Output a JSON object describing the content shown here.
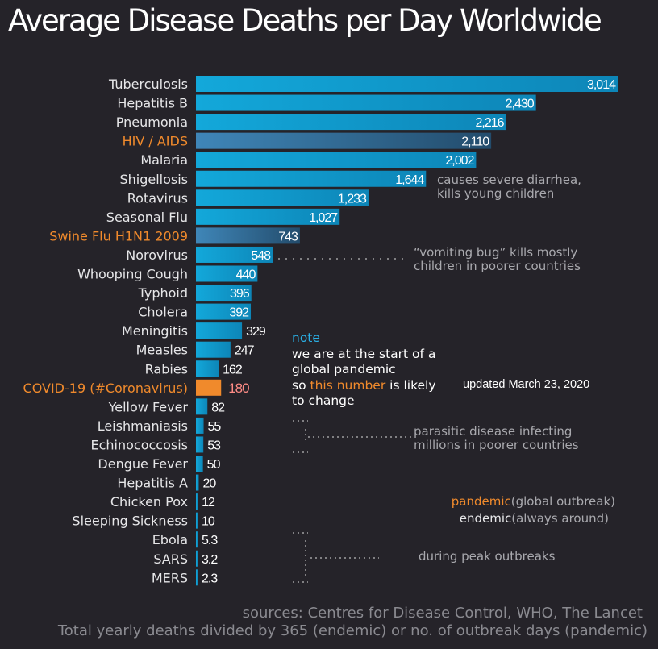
{
  "chart_data": {
    "type": "bar",
    "orientation": "horizontal",
    "title": "Average Disease Deaths per Day Worldwide",
    "categories": [
      "Tuberculosis",
      "Hepatitis B",
      "Pneumonia",
      "HIV / AIDS",
      "Malaria",
      "Shigellosis",
      "Rotavirus",
      "Seasonal Flu",
      "Swine Flu H1N1 2009",
      "Norovirus",
      "Whooping Cough",
      "Typhoid",
      "Cholera",
      "Meningitis",
      "Measles",
      "Rabies",
      "COVID-19 (#Coronavirus)",
      "Yellow Fever",
      "Leishmaniasis",
      "Echinococcosis",
      "Dengue Fever",
      "Hepatitis A",
      "Chicken Pox",
      "Sleeping Sickness",
      "Ebola",
      "SARS",
      "MERS"
    ],
    "values": [
      3014,
      2430,
      2216,
      2110,
      2002,
      1644,
      1233,
      1027,
      743,
      548,
      440,
      396,
      392,
      329,
      247,
      162,
      180,
      82,
      55,
      53,
      50,
      20,
      12,
      10,
      5.3,
      3.2,
      2.3
    ],
    "value_labels": [
      "3,014",
      "2,430",
      "2,216",
      "2,110",
      "2,002",
      "1,644",
      "1,233",
      "1,027",
      "743",
      "548",
      "440",
      "396",
      "392",
      "329",
      "247",
      "162",
      "180",
      "82",
      "55",
      "53",
      "50",
      "20",
      "12",
      "10",
      "5.3",
      "3.2",
      "2.3"
    ],
    "type_per_bar": [
      "endemic",
      "endemic",
      "endemic",
      "pandemic",
      "endemic",
      "endemic",
      "endemic",
      "endemic",
      "pandemic",
      "endemic",
      "endemic",
      "endemic",
      "endemic",
      "endemic",
      "endemic",
      "endemic",
      "covid",
      "endemic",
      "endemic",
      "endemic",
      "endemic",
      "endemic",
      "endemic",
      "endemic",
      "endemic",
      "endemic",
      "endemic"
    ],
    "xlim": [
      0,
      3014
    ],
    "grid": false,
    "colors": {
      "endemic": "#13a4d6",
      "pandemic": "#3d7fae",
      "covid": "#f08a2c",
      "covid_label": "#ff8c86",
      "label_orange": "#f08a2c",
      "background": "#252329"
    }
  },
  "annotations": {
    "shigellosis": [
      "causes severe diarrhea,",
      "kills young children"
    ],
    "norovirus": [
      "“vomiting bug” kills mostly",
      "children in poorer countries"
    ],
    "parasitic": [
      "parasitic disease infecting",
      "millions in poorer countries"
    ],
    "outbreaks": "during peak outbreaks",
    "note_heading": "note",
    "note_line1": "we are at the start of a",
    "note_line2": "global pandemic",
    "note_line3_pre": "so ",
    "note_line3_hl": "this number",
    "note_line3_post": " is likely",
    "note_line4": "to change",
    "updated": "updated March 23, 2020",
    "pandemic_word": "pandemic",
    "pandemic_def": "(global outbreak)",
    "endemic_word": "endemic",
    "endemic_def": "(always around)"
  },
  "footer": {
    "sources": "sources: Centres for Disease Control, WHO, The Lancet",
    "method": "Total yearly deaths divided by 365 (endemic) or no. of outbreak days (pandemic)"
  }
}
